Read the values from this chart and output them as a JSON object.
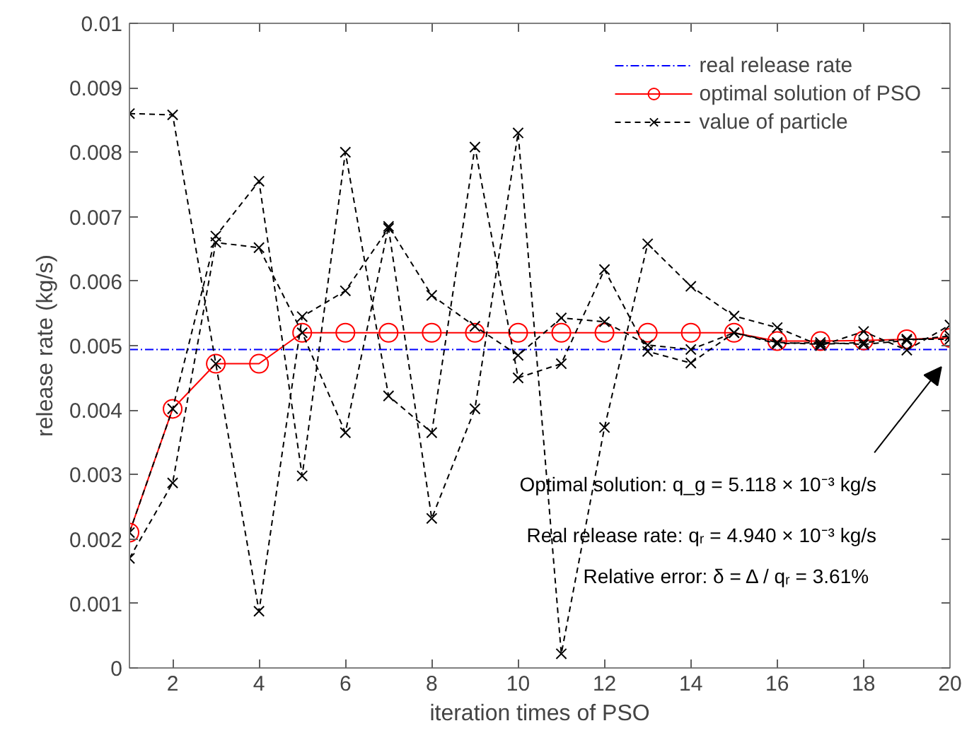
{
  "chart_data": {
    "type": "line",
    "xlabel": "iteration times of PSO",
    "ylabel": "release rate (kg/s)",
    "x": [
      1,
      2,
      3,
      4,
      5,
      6,
      7,
      8,
      9,
      10,
      11,
      12,
      13,
      14,
      15,
      16,
      17,
      18,
      19,
      20
    ],
    "series": [
      {
        "name": "real release rate",
        "color": "#0000ff",
        "line_style": "dashdot",
        "marker": "none",
        "values": [
          0.00494,
          0.00494,
          0.00494,
          0.00494,
          0.00494,
          0.00494,
          0.00494,
          0.00494,
          0.00494,
          0.00494,
          0.00494,
          0.00494,
          0.00494,
          0.00494,
          0.00494,
          0.00494,
          0.00494,
          0.00494,
          0.00494,
          0.00494
        ]
      },
      {
        "name": "optimal solution of PSO",
        "color": "#ff0000",
        "line_style": "solid",
        "marker": "circle",
        "values": [
          0.0021,
          0.00402,
          0.00472,
          0.00472,
          0.0052,
          0.0052,
          0.0052,
          0.0052,
          0.0052,
          0.0052,
          0.0052,
          0.0052,
          0.0052,
          0.0052,
          0.0052,
          0.00507,
          0.00507,
          0.00508,
          0.0051,
          0.00512
        ]
      },
      {
        "name": "value of particle",
        "color": "#000000",
        "line_style": "dashed",
        "marker": "cross",
        "values": [
          0.0086,
          0.00858,
          0.00472,
          0.00088,
          0.00545,
          0.00585,
          0.00682,
          0.00232,
          0.00402,
          0.0083,
          0.00022,
          0.00373,
          0.00658,
          0.00592,
          0.00546,
          0.00528,
          0.005,
          0.00522,
          0.00493,
          0.00532
        ]
      },
      {
        "color": "#000000",
        "line_style": "dashed",
        "marker": "cross",
        "values": [
          0.0021,
          0.00402,
          0.0067,
          0.00755,
          0.00298,
          0.008,
          0.00422,
          0.00365,
          0.00808,
          0.0045,
          0.00472,
          0.00618,
          0.00491,
          0.00473,
          0.0052,
          0.00505,
          0.00502,
          0.00505,
          0.0051,
          0.0051
        ]
      },
      {
        "color": "#000000",
        "line_style": "dashed",
        "marker": "cross",
        "values": [
          0.0017,
          0.00287,
          0.0066,
          0.00652,
          0.0052,
          0.00365,
          0.00685,
          0.00578,
          0.0053,
          0.00485,
          0.00543,
          0.00537,
          0.00501,
          0.00494,
          0.0052,
          0.00503,
          0.00505,
          0.00502,
          0.00508,
          0.00515
        ]
      }
    ],
    "xlim": [
      1,
      20
    ],
    "xticks": [
      2,
      4,
      6,
      8,
      10,
      12,
      14,
      16,
      18,
      20
    ],
    "ylim": [
      0,
      0.01
    ],
    "yticks": [
      0,
      0.001,
      0.002,
      0.003,
      0.004,
      0.005,
      0.006,
      0.007,
      0.008,
      0.009,
      0.01
    ],
    "grid": false,
    "legend": "top right",
    "annotations": [
      "Optimal solution: q_g = 5.118 × 10⁻³ kg/s",
      "Real release rate: qᵣ = 4.940 × 10⁻³ kg/s",
      "Relative error: δ = Δ / qᵣ =  3.61%"
    ]
  }
}
